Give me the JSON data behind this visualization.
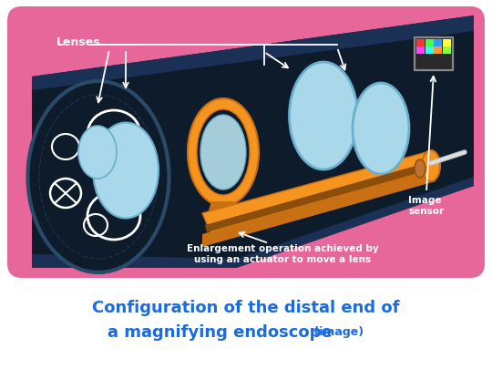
{
  "bg_color": "#ffffff",
  "panel_bg": "#e8679a",
  "title_line1": "Configuration of the distal end of",
  "title_line2": "a magnifying endoscope",
  "title_suffix": " (image)",
  "title_color": "#1a6be0",
  "title_fontsize": 13,
  "title_suffix_fontsize": 9,
  "lenses_label": "Lenses",
  "image_sensor_label": "Image\nsensor",
  "enlargement_label": "Enlargement operation achieved by\nusing an actuator to move a lens",
  "label_color": "#ffffff",
  "label_fontsize": 7.5,
  "dark_navy": "#0d1b2a",
  "dark_navy_edge": "#1a3050",
  "orange": "#f5941f",
  "orange_dark": "#c97015",
  "orange_darker": "#8b4d0a",
  "light_blue": "#a8d8ea",
  "light_blue_edge": "#6ab0cc",
  "white": "#ffffff",
  "gray_wire": "#c8c8c8",
  "sensor_colors": [
    "#ff3333",
    "#44ff44",
    "#3399ff",
    "#ffff33",
    "#ff44ff",
    "#33ffee",
    "#ff9933",
    "#88ff44"
  ]
}
